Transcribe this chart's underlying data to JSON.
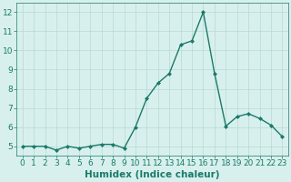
{
  "x": [
    0,
    1,
    2,
    3,
    4,
    5,
    6,
    7,
    8,
    9,
    10,
    11,
    12,
    13,
    14,
    15,
    16,
    17,
    18,
    19,
    20,
    21,
    22,
    23
  ],
  "y": [
    5.0,
    5.0,
    5.0,
    4.8,
    5.0,
    4.9,
    5.0,
    5.1,
    5.1,
    4.9,
    6.0,
    7.5,
    8.3,
    8.8,
    10.3,
    10.5,
    12.0,
    8.8,
    6.05,
    6.55,
    6.7,
    6.45,
    6.1,
    5.5
  ],
  "line_color": "#1a7a6a",
  "marker": "D",
  "marker_size": 2.0,
  "linewidth": 1.0,
  "xlabel": "Humidex (Indice chaleur)",
  "xlim": [
    -0.5,
    23.5
  ],
  "ylim": [
    4.5,
    12.5
  ],
  "yticks": [
    5,
    6,
    7,
    8,
    9,
    10,
    11,
    12
  ],
  "xticks": [
    0,
    1,
    2,
    3,
    4,
    5,
    6,
    7,
    8,
    9,
    10,
    11,
    12,
    13,
    14,
    15,
    16,
    17,
    18,
    19,
    20,
    21,
    22,
    23
  ],
  "background_color": "#d8f0ed",
  "grid_color": "#b8d8d4",
  "line_border_color": "#1a7a6a",
  "font_size": 6.5,
  "xlabel_fontsize": 7.5,
  "xlabel_fontweight": "bold"
}
